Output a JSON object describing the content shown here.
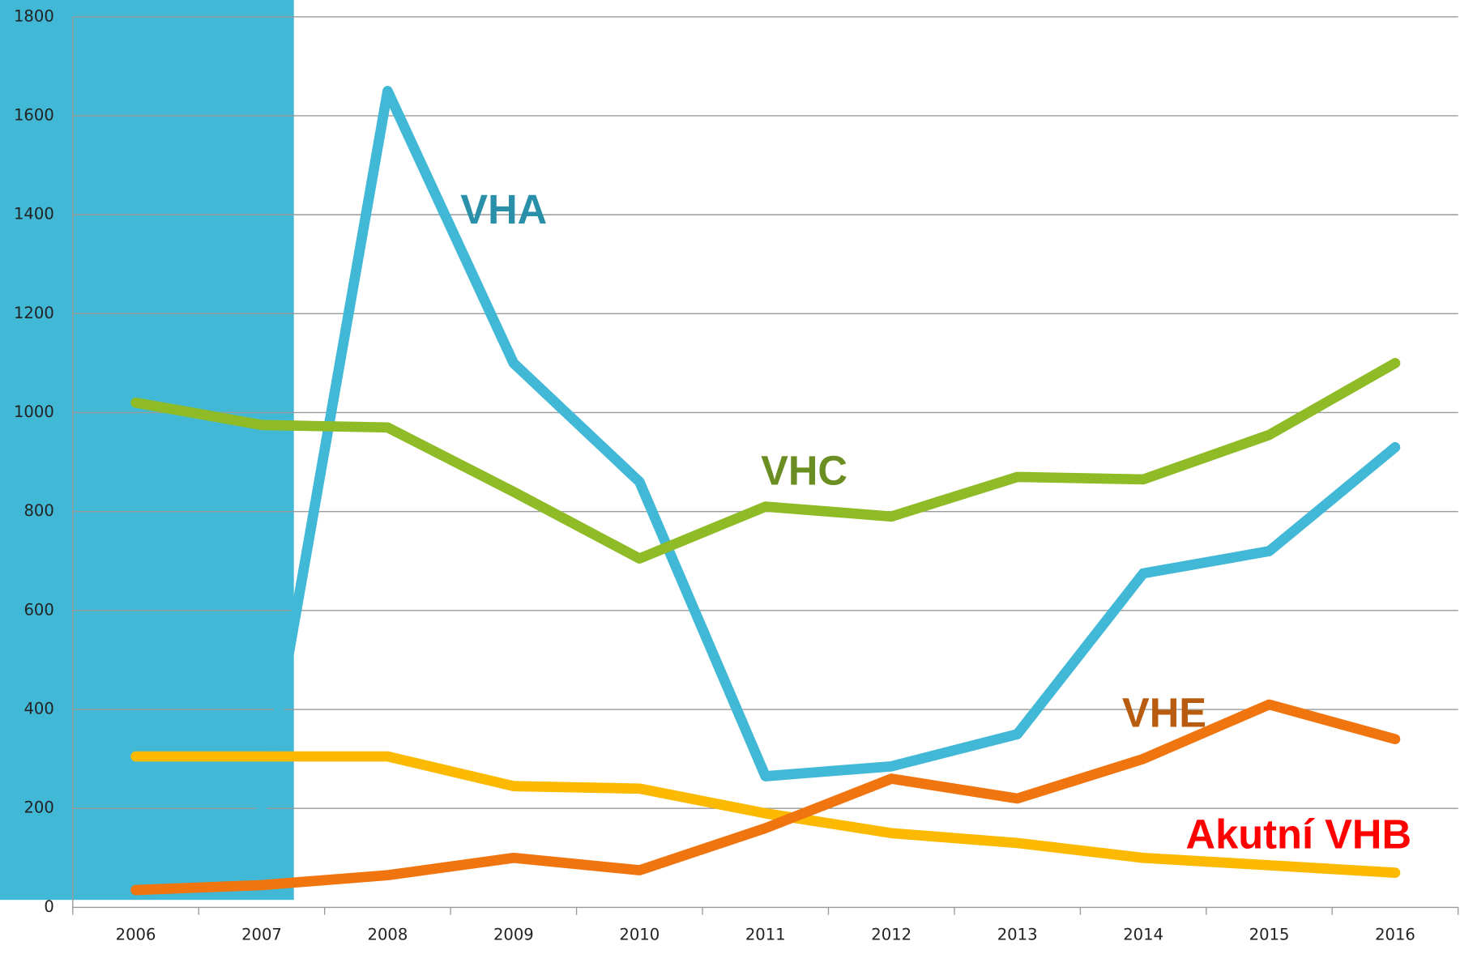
{
  "chart_data": {
    "type": "line",
    "categories": [
      "2006",
      "2007",
      "2008",
      "2009",
      "2010",
      "2011",
      "2012",
      "2013",
      "2014",
      "2015",
      "2016"
    ],
    "series": [
      {
        "name": "VHA",
        "color": "#41b8d5",
        "values": [
          null,
          200,
          1650,
          1100,
          860,
          265,
          285,
          350,
          675,
          720,
          930
        ]
      },
      {
        "name": "VHC",
        "color": "#8fbc26",
        "values": [
          1020,
          975,
          970,
          840,
          705,
          810,
          790,
          870,
          865,
          955,
          1100
        ]
      },
      {
        "name": "Akutní VHB",
        "color": "#fbb900",
        "values": [
          305,
          305,
          305,
          245,
          240,
          190,
          150,
          130,
          100,
          85,
          70
        ]
      },
      {
        "name": "VHE",
        "color": "#f0750f",
        "values": [
          35,
          45,
          65,
          100,
          75,
          160,
          260,
          220,
          300,
          410,
          340
        ]
      }
    ],
    "annotations": [
      {
        "text": "VHA",
        "color": "#2a8fa8"
      },
      {
        "text": "VHC",
        "color": "#6b8e23"
      },
      {
        "text": "Akutní VHB",
        "color": "#ff0000"
      },
      {
        "text": "VHE",
        "color": "#b85c10"
      }
    ],
    "ylim": [
      0,
      1800
    ],
    "yticks": [
      0,
      200,
      400,
      600,
      800,
      1000,
      1200,
      1400,
      1600,
      1800
    ],
    "grid": true
  }
}
